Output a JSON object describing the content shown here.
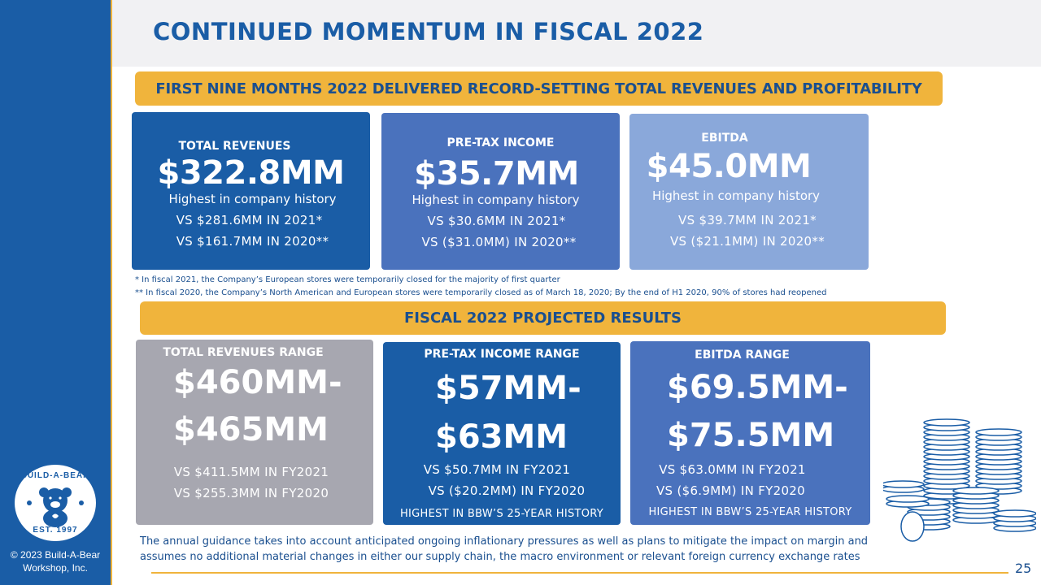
{
  "title": "CONTINUED MOMENTUM IN FISCAL 2022",
  "banner_nine_months": "FIRST NINE MONTHS 2022 DELIVERED RECORD-SETTING TOTAL REVENUES AND PROFITABILITY",
  "banner_projected": "FISCAL 2022 PROJECTED RESULTS",
  "nine_months": {
    "revenues": {
      "label": "TOTAL REVENUES",
      "value": "$322.8MM",
      "note": "Highest in company history",
      "cmp_2021": "VS $281.6MM IN 2021*",
      "cmp_2020": "VS $161.7MM IN 2020**"
    },
    "pretax": {
      "label": "PRE-TAX INCOME",
      "value": "$35.7MM",
      "note": "Highest in company history",
      "cmp_2021": "VS $30.6MM IN 2021*",
      "cmp_2020": "VS ($31.0MM) IN 2020**"
    },
    "ebitda": {
      "label": "EBITDA",
      "value": "$45.0MM",
      "note": "Highest in company history",
      "cmp_2021": "VS $39.7MM IN 2021*",
      "cmp_2020": "VS ($21.1MM) IN 2020**"
    }
  },
  "footnotes": {
    "one": "* In fiscal 2021, the Company’s European stores were temporarily closed for the majority of first quarter",
    "two": "** In fiscal 2020, the Company’s North American and European stores were temporarily closed as of March 18, 2020; By the end of H1 2020, 90% of stores had reopened"
  },
  "projected": {
    "revenues": {
      "label": "TOTAL REVENUES RANGE",
      "value_line1": "$460MM-",
      "value_line2": "$465MM",
      "cmp_fy2021": "VS $411.5MM IN FY2021",
      "cmp_fy2020": "VS $255.3MM IN FY2020"
    },
    "pretax": {
      "label": "PRE-TAX INCOME RANGE",
      "value_line1": "$57MM-",
      "value_line2": "$63MM",
      "cmp_fy2021": "VS $50.7MM IN FY2021",
      "cmp_fy2020": "VS ($20.2MM) IN FY2020",
      "history": "HIGHEST IN BBW’S 25-YEAR HISTORY"
    },
    "ebitda": {
      "label": "EBITDA RANGE",
      "value_line1": "$69.5MM-",
      "value_line2": "$75.5MM",
      "cmp_fy2021": "VS $63.0MM IN FY2021",
      "cmp_fy2020": "VS ($6.9MM) IN FY2020",
      "history": "HIGHEST IN BBW’S 25-YEAR HISTORY"
    }
  },
  "guidance_text": "The annual guidance takes into account anticipated ongoing inflationary pressures as well as plans to mitigate the impact on margin and assumes no additional material changes in either our supply chain, the macro environment or relevant foreign currency exchange rates",
  "logo": {
    "top_text": "BUILD-A-BEAR",
    "bottom_text": "EST. 1997"
  },
  "copyright": "© 2023 Build-A-Bear Workshop, Inc.",
  "page_number": "25",
  "colors": {
    "brand_blue": "#1a5da6",
    "mid_blue": "#4a72bd",
    "light_blue": "#8aa8da",
    "gray": "#a7a7b0",
    "gold": "#f0b43c",
    "title_band": "#f1f1f3"
  },
  "icons": {
    "logo": "build-a-bear-logo",
    "coins": "coin-stacks-illustration"
  }
}
